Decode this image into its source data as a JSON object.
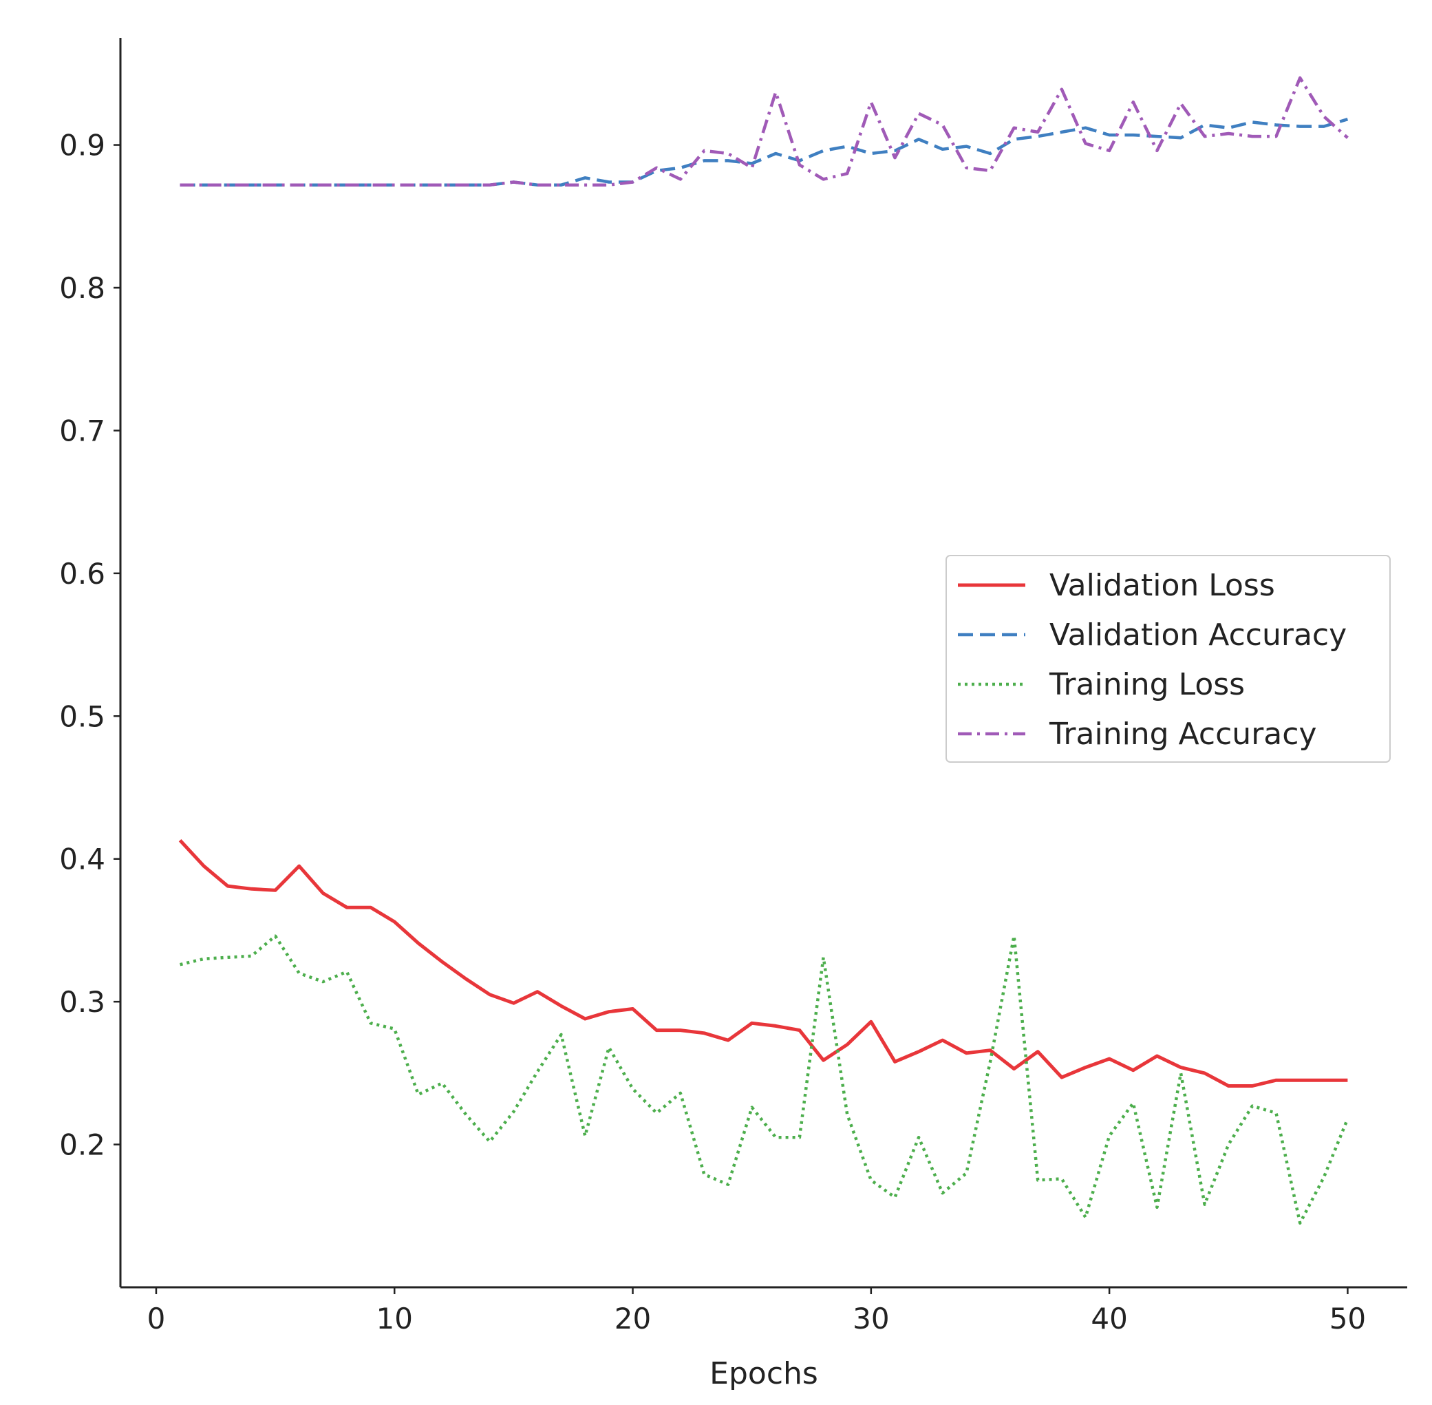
{
  "chart_data": {
    "type": "line",
    "title": "",
    "xlabel": "Epochs",
    "ylabel": "",
    "xlim": [
      -1.5,
      52.5
    ],
    "ylim": [
      0.1,
      0.975
    ],
    "xticks": [
      0,
      10,
      20,
      30,
      40,
      50
    ],
    "yticks": [
      0.2,
      0.3,
      0.4,
      0.5,
      0.6,
      0.7,
      0.8,
      0.9
    ],
    "xtick_labels": [
      "0",
      "10",
      "20",
      "30",
      "40",
      "50"
    ],
    "ytick_labels": [
      "0.2",
      "0.3",
      "0.4",
      "0.5",
      "0.6",
      "0.7",
      "0.8",
      "0.9"
    ],
    "grid": false,
    "legend_position": "center-right",
    "x": [
      1,
      2,
      3,
      4,
      5,
      6,
      7,
      8,
      9,
      10,
      11,
      12,
      13,
      14,
      15,
      16,
      17,
      18,
      19,
      20,
      21,
      22,
      23,
      24,
      25,
      26,
      27,
      28,
      29,
      30,
      31,
      32,
      33,
      34,
      35,
      36,
      37,
      38,
      39,
      40,
      41,
      42,
      43,
      44,
      45,
      46,
      47,
      48,
      49,
      50
    ],
    "series": [
      {
        "name": "Validation Loss",
        "color": "#e8363a",
        "style": "solid",
        "values": [
          0.413,
          0.395,
          0.381,
          0.379,
          0.378,
          0.395,
          0.376,
          0.366,
          0.366,
          0.356,
          0.341,
          0.328,
          0.316,
          0.305,
          0.299,
          0.307,
          0.297,
          0.288,
          0.293,
          0.295,
          0.28,
          0.28,
          0.278,
          0.273,
          0.285,
          0.283,
          0.28,
          0.259,
          0.27,
          0.286,
          0.258,
          0.265,
          0.273,
          0.264,
          0.266,
          0.253,
          0.265,
          0.247,
          0.254,
          0.26,
          0.252,
          0.262,
          0.254,
          0.25,
          0.241,
          0.241,
          0.245,
          0.245,
          0.245,
          0.245
        ]
      },
      {
        "name": "Validation Accuracy",
        "color": "#3f7fc1",
        "style": "dashed",
        "values": [
          0.872,
          0.872,
          0.872,
          0.872,
          0.872,
          0.872,
          0.872,
          0.872,
          0.872,
          0.872,
          0.872,
          0.872,
          0.872,
          0.872,
          0.874,
          0.872,
          0.872,
          0.877,
          0.874,
          0.874,
          0.882,
          0.884,
          0.889,
          0.889,
          0.887,
          0.894,
          0.889,
          0.896,
          0.899,
          0.894,
          0.896,
          0.904,
          0.897,
          0.899,
          0.894,
          0.904,
          0.906,
          0.909,
          0.912,
          0.907,
          0.907,
          0.906,
          0.905,
          0.914,
          0.912,
          0.916,
          0.914,
          0.913,
          0.913,
          0.918
        ]
      },
      {
        "name": "Training Loss",
        "color": "#4cae4c",
        "style": "dotted",
        "values": [
          0.326,
          0.33,
          0.331,
          0.332,
          0.346,
          0.32,
          0.314,
          0.321,
          0.285,
          0.281,
          0.235,
          0.243,
          0.221,
          0.202,
          0.223,
          0.251,
          0.277,
          0.206,
          0.268,
          0.239,
          0.222,
          0.236,
          0.179,
          0.172,
          0.226,
          0.205,
          0.205,
          0.331,
          0.221,
          0.175,
          0.163,
          0.205,
          0.166,
          0.18,
          0.258,
          0.346,
          0.175,
          0.176,
          0.149,
          0.206,
          0.229,
          0.156,
          0.25,
          0.158,
          0.2,
          0.227,
          0.222,
          0.145,
          0.177,
          0.218
        ]
      },
      {
        "name": "Training Accuracy",
        "color": "#a05ab7",
        "style": "dashdot",
        "values": [
          0.872,
          0.872,
          0.872,
          0.872,
          0.872,
          0.872,
          0.872,
          0.872,
          0.872,
          0.872,
          0.872,
          0.872,
          0.872,
          0.872,
          0.874,
          0.872,
          0.872,
          0.872,
          0.872,
          0.874,
          0.884,
          0.876,
          0.896,
          0.894,
          0.884,
          0.937,
          0.886,
          0.876,
          0.88,
          0.93,
          0.891,
          0.922,
          0.914,
          0.884,
          0.882,
          0.912,
          0.909,
          0.939,
          0.901,
          0.896,
          0.93,
          0.896,
          0.929,
          0.906,
          0.908,
          0.906,
          0.906,
          0.947,
          0.92,
          0.905
        ]
      }
    ]
  }
}
